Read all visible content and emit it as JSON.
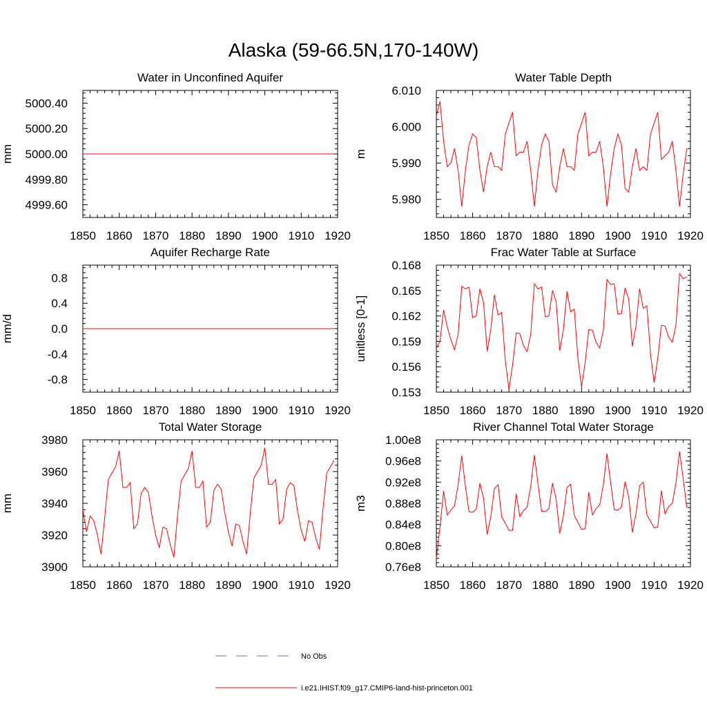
{
  "figure": {
    "title": "Alaska (59-66.5N,170-140W)",
    "legend": [
      {
        "label": "No Obs",
        "color": "#5a6fd6",
        "style": "dashed"
      },
      {
        "label": "i.e21.IHIST.f09_g17.CMIP6-land-hist-princeton.001",
        "color": "#ff0000",
        "style": "solid"
      }
    ]
  },
  "chart_data": [
    {
      "type": "line",
      "title": "Water in Unconfined Aquifer",
      "ylabel": "mm",
      "xlim": [
        1850,
        1920
      ],
      "xticks": [
        "1850",
        "1860",
        "1870",
        "1880",
        "1890",
        "1900",
        "1910",
        "1920"
      ],
      "ylim": [
        4999.5,
        5000.5
      ],
      "yticks": [
        "5000.40",
        "5000.20",
        "5000.00",
        "4999.80",
        "4999.60"
      ],
      "ytick_values": [
        5000.4,
        5000.2,
        5000.0,
        4999.8,
        4999.6
      ],
      "x_start": 1850,
      "series": [
        {
          "color": "#ff0000",
          "values": [
            5000,
            5000,
            5000,
            5000,
            5000,
            5000,
            5000,
            5000,
            5000,
            5000,
            5000,
            5000,
            5000,
            5000,
            5000,
            5000,
            5000,
            5000,
            5000,
            5000,
            5000,
            5000,
            5000,
            5000,
            5000,
            5000,
            5000,
            5000,
            5000,
            5000,
            5000,
            5000,
            5000,
            5000,
            5000,
            5000,
            5000,
            5000,
            5000,
            5000,
            5000,
            5000,
            5000,
            5000,
            5000,
            5000,
            5000,
            5000,
            5000,
            5000,
            5000,
            5000,
            5000,
            5000,
            5000,
            5000,
            5000,
            5000,
            5000,
            5000,
            5000,
            5000,
            5000,
            5000,
            5000,
            5000,
            5000,
            5000,
            5000,
            5000
          ]
        }
      ]
    },
    {
      "type": "line",
      "title": "Water Table Depth",
      "ylabel": "m",
      "xlim": [
        1850,
        1920
      ],
      "xticks": [
        "1850",
        "1860",
        "1870",
        "1880",
        "1890",
        "1900",
        "1910",
        "1920"
      ],
      "ylim": [
        5.975,
        6.01
      ],
      "yticks": [
        "6.010",
        "6.000",
        "5.990",
        "5.980"
      ],
      "ytick_values": [
        6.01,
        6.0,
        5.99,
        5.98
      ],
      "x_start": 1850,
      "series": [
        {
          "color": "#ff0000",
          "values": [
            6.003,
            6.007,
            5.996,
            5.989,
            5.99,
            5.994,
            5.988,
            5.978,
            5.988,
            5.995,
            5.998,
            5.997,
            5.988,
            5.982,
            5.989,
            5.993,
            5.989,
            5.989,
            5.988,
            5.998,
            6.001,
            6.004,
            5.992,
            5.993,
            5.993,
            5.996,
            5.988,
            5.978,
            5.988,
            5.995,
            5.998,
            5.996,
            5.984,
            5.982,
            5.989,
            5.994,
            5.989,
            5.989,
            5.988,
            5.998,
            6.001,
            6.004,
            5.992,
            5.993,
            5.993,
            5.996,
            5.989,
            5.978,
            5.987,
            5.994,
            5.998,
            5.995,
            5.983,
            5.982,
            5.989,
            5.994,
            5.988,
            5.989,
            5.988,
            5.998,
            6.001,
            6.004,
            5.991,
            5.992,
            5.993,
            5.996,
            5.988,
            5.978,
            5.987,
            5.994
          ]
        }
      ]
    },
    {
      "type": "line",
      "title": "Aquifer Recharge Rate",
      "ylabel": "mm/d",
      "xlim": [
        1850,
        1920
      ],
      "xticks": [
        "1850",
        "1860",
        "1870",
        "1880",
        "1890",
        "1900",
        "1910",
        "1920"
      ],
      "ylim": [
        -1.0,
        1.0
      ],
      "yticks": [
        "0.8",
        "0.4",
        "0.0",
        "-0.4",
        "-0.8"
      ],
      "ytick_values": [
        0.8,
        0.4,
        0.0,
        -0.4,
        -0.8
      ],
      "x_start": 1850,
      "series": [
        {
          "color": "#ff0000",
          "values": [
            0,
            0,
            0,
            0,
            0,
            0,
            0,
            0,
            0,
            0,
            0,
            0,
            0,
            0,
            0,
            0,
            0,
            0,
            0,
            0,
            0,
            0,
            0,
            0,
            0,
            0,
            0,
            0,
            0,
            0,
            0,
            0,
            0,
            0,
            0,
            0,
            0,
            0,
            0,
            0,
            0,
            0,
            0,
            0,
            0,
            0,
            0,
            0,
            0,
            0,
            0,
            0,
            0,
            0,
            0,
            0,
            0,
            0,
            0,
            0,
            0,
            0,
            0,
            0,
            0,
            0,
            0,
            0,
            0,
            0
          ]
        }
      ]
    },
    {
      "type": "line",
      "title": "Frac Water Table at Surface",
      "ylabel": "unitless [0-1]",
      "xlim": [
        1850,
        1920
      ],
      "xticks": [
        "1850",
        "1860",
        "1870",
        "1880",
        "1890",
        "1900",
        "1910",
        "1920"
      ],
      "ylim": [
        0.153,
        0.168
      ],
      "yticks": [
        "0.168",
        "0.165",
        "0.162",
        "0.159",
        "0.156",
        "0.153"
      ],
      "ytick_values": [
        0.168,
        0.165,
        0.162,
        0.159,
        0.156,
        0.153
      ],
      "x_start": 1850,
      "series": [
        {
          "color": "#ff0000",
          "values": [
            0.1582,
            0.159,
            0.1627,
            0.1607,
            0.1592,
            0.158,
            0.1598,
            0.1655,
            0.1652,
            0.1654,
            0.1618,
            0.162,
            0.1652,
            0.1636,
            0.1578,
            0.1604,
            0.1645,
            0.1621,
            0.1624,
            0.1567,
            0.1533,
            0.1562,
            0.16,
            0.1599,
            0.1585,
            0.1578,
            0.1598,
            0.1658,
            0.1652,
            0.1654,
            0.1619,
            0.162,
            0.165,
            0.1637,
            0.1579,
            0.1604,
            0.1649,
            0.1625,
            0.1628,
            0.157,
            0.1536,
            0.1565,
            0.1604,
            0.1603,
            0.1589,
            0.1582,
            0.1603,
            0.1663,
            0.1657,
            0.1658,
            0.1622,
            0.1623,
            0.1653,
            0.164,
            0.1584,
            0.1608,
            0.1652,
            0.1629,
            0.1632,
            0.1575,
            0.1541,
            0.157,
            0.1609,
            0.1608,
            0.1595,
            0.1589,
            0.1609,
            0.167,
            0.1664,
            0.1666
          ]
        }
      ]
    },
    {
      "type": "line",
      "title": "Total Water Storage",
      "ylabel": "mm",
      "xlim": [
        1850,
        1920
      ],
      "xticks": [
        "1850",
        "1860",
        "1870",
        "1880",
        "1890",
        "1900",
        "1910",
        "1920"
      ],
      "ylim": [
        3900,
        3980
      ],
      "yticks": [
        "3980",
        "3960",
        "3940",
        "3920",
        "3900"
      ],
      "ytick_values": [
        3980,
        3960,
        3940,
        3920,
        3900
      ],
      "x_start": 1850,
      "series": [
        {
          "color": "#ff0000",
          "values": [
            3936,
            3922,
            3932,
            3929,
            3920,
            3908,
            3931,
            3955,
            3959,
            3963,
            3973,
            3950,
            3950,
            3953,
            3924,
            3927,
            3946,
            3950,
            3947,
            3932,
            3920,
            3912,
            3925,
            3924,
            3914,
            3906,
            3932,
            3954,
            3958,
            3962,
            3973,
            3950,
            3950,
            3954,
            3925,
            3928,
            3948,
            3952,
            3949,
            3934,
            3922,
            3913,
            3927,
            3926,
            3916,
            3908,
            3934,
            3956,
            3960,
            3964,
            3975,
            3952,
            3952,
            3955,
            3927,
            3930,
            3949,
            3953,
            3951,
            3935,
            3923,
            3916,
            3929,
            3928,
            3918,
            3911,
            3937,
            3959,
            3963,
            3967
          ]
        }
      ]
    },
    {
      "type": "line",
      "title": "River Channel Total Water Storage",
      "ylabel": "m3",
      "xlim": [
        1850,
        1920
      ],
      "xticks": [
        "1850",
        "1860",
        "1870",
        "1880",
        "1890",
        "1900",
        "1910",
        "1920"
      ],
      "ylim": [
        76000000.0,
        100000000.0
      ],
      "yticks": [
        "1.00e8",
        "0.96e8",
        "0.92e8",
        "0.88e8",
        "0.84e8",
        "0.80e8",
        "0.76e8"
      ],
      "ytick_values": [
        100000000.0,
        96000000.0,
        92000000.0,
        88000000.0,
        84000000.0,
        80000000.0,
        76000000.0
      ],
      "x_start": 1850,
      "series": [
        {
          "color": "#ff0000",
          "values": [
            77600000.0,
            83500000.0,
            90300000.0,
            85800000.0,
            86700000.0,
            87500000.0,
            91500000.0,
            97000000.0,
            91200000.0,
            86400000.0,
            86300000.0,
            86900000.0,
            91800000.0,
            89000000.0,
            82100000.0,
            85500000.0,
            90800000.0,
            91500000.0,
            85500000.0,
            84200000.0,
            82900000.0,
            82900000.0,
            89800000.0,
            85500000.0,
            86600000.0,
            87300000.0,
            91200000.0,
            97100000.0,
            91700000.0,
            86500000.0,
            86400000.0,
            87000000.0,
            91800000.0,
            88800000.0,
            82300000.0,
            85700000.0,
            91000000.0,
            91600000.0,
            85700000.0,
            84400000.0,
            83100000.0,
            83200000.0,
            90100000.0,
            85800000.0,
            87000000.0,
            87700000.0,
            91500000.0,
            97400000.0,
            92000000.0,
            86800000.0,
            86700000.0,
            87300000.0,
            92100000.0,
            89200000.0,
            82500000.0,
            86000000.0,
            91300000.0,
            92000000.0,
            85800000.0,
            84600000.0,
            83400000.0,
            83500000.0,
            90400000.0,
            86000000.0,
            87400000.0,
            88000000.0,
            91800000.0,
            97800000.0,
            92600000.0,
            87200000.0
          ]
        }
      ]
    }
  ]
}
